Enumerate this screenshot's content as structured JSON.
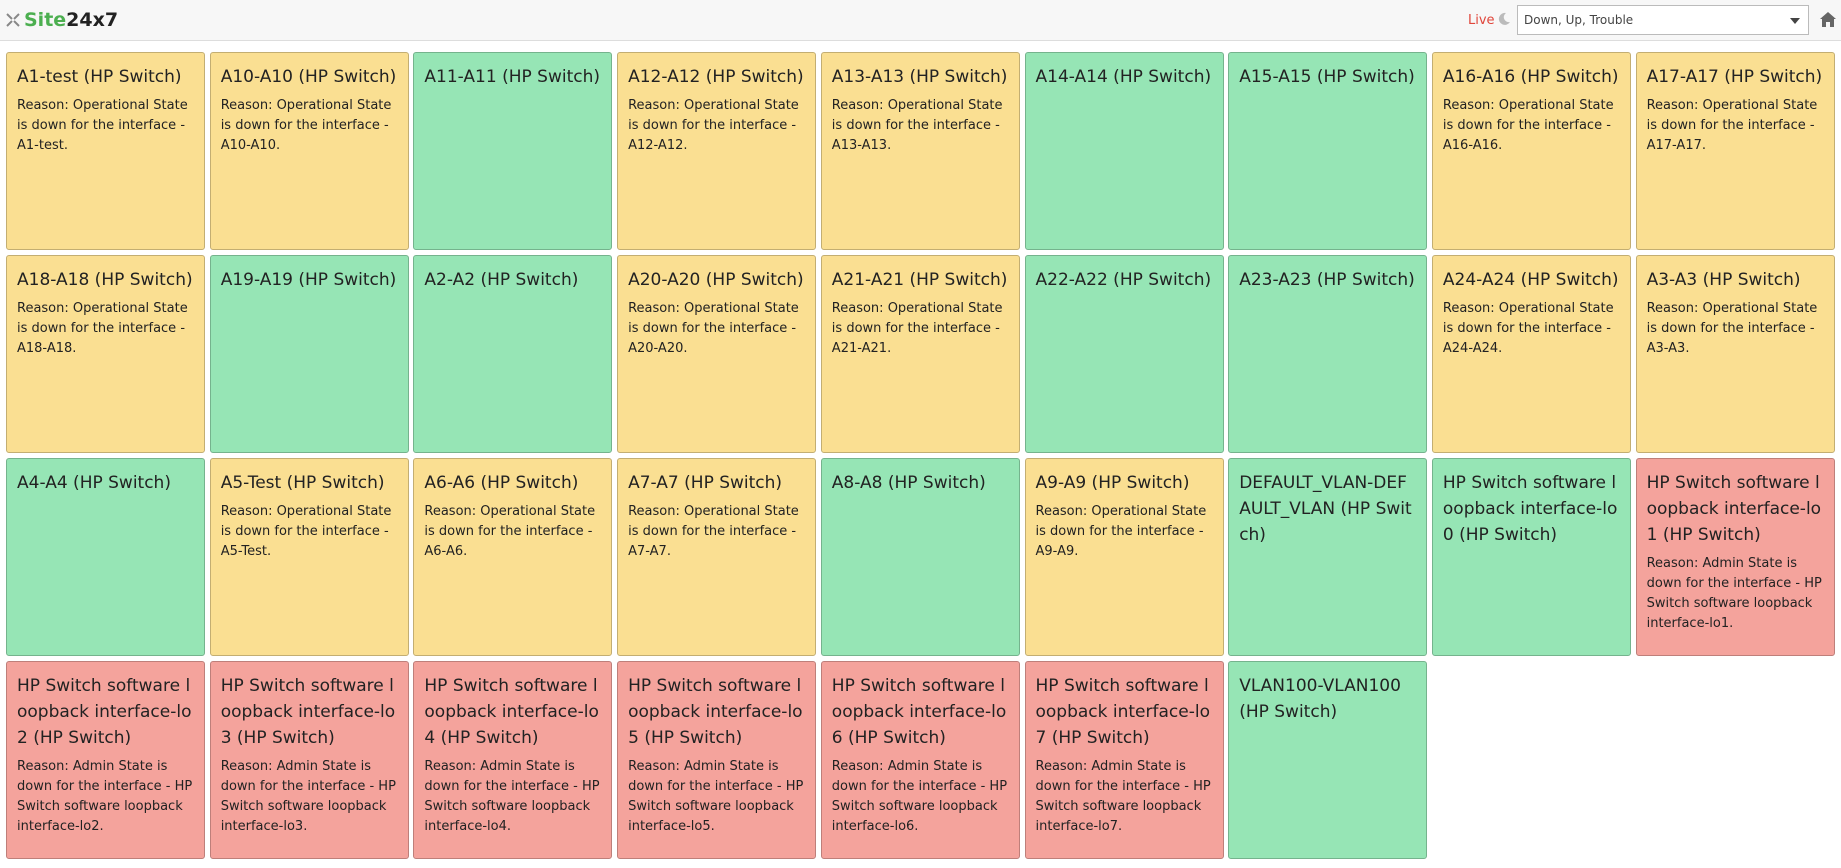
{
  "header": {
    "logo_site": "Site",
    "logo_num": "24x7",
    "live": "Live",
    "filter": "Down, Up, Trouble"
  },
  "tiles": [
    {
      "title": "A1-test (HP Switch)",
      "reason": "Reason: Operational State is down for the interface - A1-test.",
      "color": "#fadf92"
    },
    {
      "title": "A10-A10 (HP Switch)",
      "reason": "Reason: Operational State is down for the interface - A10-A10.",
      "color": "#fadf92"
    },
    {
      "title": "A11-A11 (HP Switch)",
      "color": "#96e5b5"
    },
    {
      "title": "A12-A12 (HP Switch)",
      "reason": "Reason: Operational State is down for the interface - A12-A12.",
      "color": "#fadf92"
    },
    {
      "title": "A13-A13 (HP Switch)",
      "reason": "Reason: Operational State is down for the interface - A13-A13.",
      "color": "#fadf92"
    },
    {
      "title": "A14-A14 (HP Switch)",
      "color": "#96e5b5"
    },
    {
      "title": "A15-A15 (HP Switch)",
      "color": "#96e5b5"
    },
    {
      "title": "A16-A16 (HP Switch)",
      "reason": "Reason: Operational State is down for the interface - A16-A16.",
      "color": "#fadf92"
    },
    {
      "title": "A17-A17 (HP Switch)",
      "reason": "Reason: Operational State is down for the interface - A17-A17.",
      "color": "#fadf92"
    },
    {
      "title": "A18-A18 (HP Switch)",
      "reason": "Reason: Operational State is down for the interface - A18-A18.",
      "color": "#fadf92"
    },
    {
      "title": "A19-A19 (HP Switch)",
      "color": "#96e5b5"
    },
    {
      "title": "A2-A2 (HP Switch)",
      "color": "#96e5b5"
    },
    {
      "title": "A20-A20 (HP Switch)",
      "reason": "Reason: Operational State is down for the interface - A20-A20.",
      "color": "#fadf92"
    },
    {
      "title": "A21-A21 (HP Switch)",
      "reason": "Reason: Operational State is down for the interface - A21-A21.",
      "color": "#fadf92"
    },
    {
      "title": "A22-A22 (HP Switch)",
      "color": "#96e5b5"
    },
    {
      "title": "A23-A23 (HP Switch)",
      "color": "#96e5b5"
    },
    {
      "title": "A24-A24 (HP Switch)",
      "reason": "Reason: Operational State is down for the interface - A24-A24.",
      "color": "#fadf92"
    },
    {
      "title": "A3-A3 (HP Switch)",
      "reason": "Reason: Operational State is down for the interface - A3-A3.",
      "color": "#fadf92"
    },
    {
      "title": "A4-A4 (HP Switch)",
      "color": "#96e5b5"
    },
    {
      "title": "A5-Test (HP Switch)",
      "reason": "Reason: Operational State is down for the interface - A5-Test.",
      "color": "#fadf92"
    },
    {
      "title": "A6-A6 (HP Switch)",
      "reason": "Reason: Operational State is down for the interface - A6-A6.",
      "color": "#fadf92"
    },
    {
      "title": "A7-A7 (HP Switch)",
      "reason": "Reason: Operational State is down for the interface - A7-A7.",
      "color": "#fadf92"
    },
    {
      "title": "A8-A8 (HP Switch)",
      "color": "#96e5b5"
    },
    {
      "title": "A9-A9 (HP Switch)",
      "reason": "Reason: Operational State is down for the interface - A9-A9.",
      "color": "#fadf92"
    },
    {
      "title": "DEFAULT_VLAN-DEFAULT_VLAN (HP Switch)",
      "color": "#96e5b5"
    },
    {
      "title": "HP Switch software loopback interface-lo0 (HP Switch)",
      "color": "#96e5b5"
    },
    {
      "title": "HP Switch software loopback interface-lo1 (HP Switch)",
      "reason": "Reason: Admin State is down for the interface - HP Switch software loopback interface-lo1.",
      "color": "#f4a39c"
    },
    {
      "title": "HP Switch software loopback interface-lo2 (HP Switch)",
      "reason": "Reason: Admin State is down for the interface - HP Switch software loopback interface-lo2.",
      "color": "#f4a39c"
    },
    {
      "title": "HP Switch software loopback interface-lo3 (HP Switch)",
      "reason": "Reason: Admin State is down for the interface - HP Switch software loopback interface-lo3.",
      "color": "#f4a39c"
    },
    {
      "title": "HP Switch software loopback interface-lo4 (HP Switch)",
      "reason": "Reason: Admin State is down for the interface - HP Switch software loopback interface-lo4.",
      "color": "#f4a39c"
    },
    {
      "title": "HP Switch software loopback interface-lo5 (HP Switch)",
      "reason": "Reason: Admin State is down for the interface - HP Switch software loopback interface-lo5.",
      "color": "#f4a39c"
    },
    {
      "title": "HP Switch software loopback interface-lo6 (HP Switch)",
      "reason": "Reason: Admin State is down for the interface - HP Switch software loopback interface-lo6.",
      "color": "#f4a39c"
    },
    {
      "title": "HP Switch software loopback interface-lo7 (HP Switch)",
      "reason": "Reason: Admin State is down for the interface - HP Switch software loopback interface-lo7.",
      "color": "#f4a39c"
    },
    {
      "title": "VLAN100-VLAN100 (HP Switch)",
      "color": "#96e5b5"
    }
  ]
}
